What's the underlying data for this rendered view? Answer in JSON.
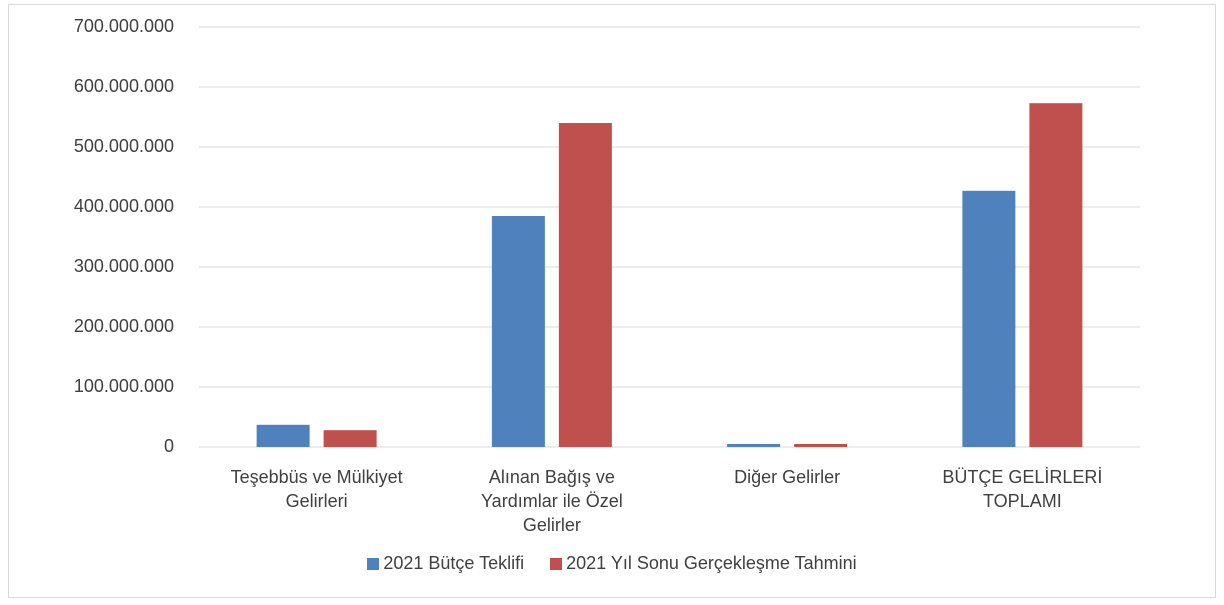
{
  "chart_data": {
    "type": "bar",
    "categories": [
      "Teşebbüs ve Mülkiyet Gelirleri",
      "Alınan Bağış ve Yardımlar ile Özel Gelirler",
      "Diğer Gelirler",
      "BÜTÇE GELİRLERİ TOPLAMI"
    ],
    "series": [
      {
        "name": "2021 Bütçe Teklifi",
        "color": "#4f81bd",
        "values": [
          37000000,
          385000000,
          5000000,
          427000000
        ]
      },
      {
        "name": "2021 Yıl Sonu Gerçekleşme Tahmini",
        "color": "#c0504d",
        "values": [
          28000000,
          540000000,
          5000000,
          573000000
        ]
      }
    ],
    "ylim": [
      0,
      700000000
    ],
    "yticks": [
      0,
      {
        "value": 100000000,
        "label": "100.000.000"
      },
      {
        "value": 200000000,
        "label": "200.000.000"
      },
      {
        "value": 300000000,
        "label": "300.000.000"
      },
      {
        "value": 400000000,
        "label": "400.000.000"
      },
      {
        "value": 500000000,
        "label": "500.000.000"
      },
      {
        "value": 600000000,
        "label": "600.000.000"
      },
      {
        "value": 700000000,
        "label": "700.000.000"
      }
    ],
    "grid": true,
    "legend": "bottom"
  }
}
